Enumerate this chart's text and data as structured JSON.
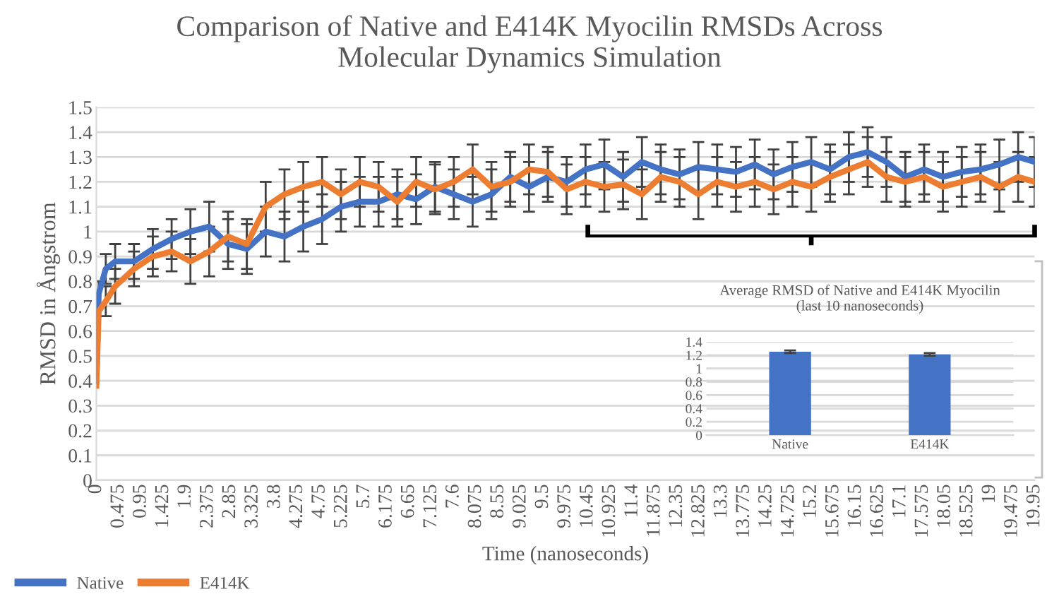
{
  "chart_data": [
    {
      "type": "line",
      "title": "Comparison of Native and E414K Myocilin RMSDs Across\nMolecular Dynamics Simulation",
      "xlabel": "Time (nanoseconds)",
      "ylabel": "RMSD in Ångstrom",
      "x": [
        0,
        0.05,
        0.2,
        0.4,
        0.8,
        1.2,
        1.6,
        2.0,
        2.4,
        2.8,
        3.2,
        3.6,
        4.0,
        4.4,
        4.8,
        5.2,
        5.6,
        6.0,
        6.4,
        6.8,
        7.2,
        7.6,
        8.0,
        8.4,
        8.8,
        9.2,
        9.6,
        10.0,
        10.4,
        10.8,
        11.2,
        11.6,
        12.0,
        12.4,
        12.8,
        13.2,
        13.6,
        14.0,
        14.4,
        14.8,
        15.2,
        15.6,
        16.0,
        16.4,
        16.8,
        17.2,
        17.6,
        18.0,
        18.4,
        18.8,
        19.2,
        19.6,
        19.95
      ],
      "series": [
        {
          "name": "Native",
          "color": "#4472c4",
          "values": [
            0.4,
            0.75,
            0.85,
            0.88,
            0.88,
            0.93,
            0.97,
            1.0,
            1.02,
            0.95,
            0.93,
            1.0,
            0.98,
            1.02,
            1.05,
            1.1,
            1.12,
            1.12,
            1.15,
            1.13,
            1.18,
            1.15,
            1.12,
            1.15,
            1.22,
            1.18,
            1.22,
            1.2,
            1.25,
            1.27,
            1.22,
            1.28,
            1.25,
            1.23,
            1.26,
            1.25,
            1.24,
            1.27,
            1.23,
            1.26,
            1.28,
            1.25,
            1.3,
            1.32,
            1.28,
            1.22,
            1.25,
            1.22,
            1.24,
            1.25,
            1.27,
            1.3,
            1.28
          ],
          "errors": [
            null,
            0.05,
            0.06,
            0.07,
            0.07,
            0.08,
            0.08,
            0.09,
            0.1,
            0.1,
            0.1,
            0.1,
            0.1,
            0.1,
            0.1,
            0.1,
            0.1,
            0.1,
            0.1,
            0.1,
            0.1,
            0.1,
            0.1,
            0.1,
            0.1,
            0.1,
            0.1,
            0.1,
            0.1,
            0.1,
            0.1,
            0.1,
            0.1,
            0.1,
            0.1,
            0.1,
            0.1,
            0.1,
            0.1,
            0.1,
            0.1,
            0.1,
            0.1,
            0.1,
            0.1,
            0.1,
            0.1,
            0.1,
            0.1,
            0.1,
            0.1,
            0.1,
            0.1
          ]
        },
        {
          "name": "E414K",
          "color": "#ed7d31",
          "values": [
            0.38,
            0.68,
            0.72,
            0.78,
            0.85,
            0.9,
            0.92,
            0.88,
            0.92,
            0.98,
            0.95,
            1.1,
            1.15,
            1.18,
            1.2,
            1.15,
            1.2,
            1.18,
            1.12,
            1.2,
            1.17,
            1.2,
            1.25,
            1.18,
            1.2,
            1.25,
            1.24,
            1.17,
            1.2,
            1.18,
            1.19,
            1.15,
            1.22,
            1.2,
            1.15,
            1.2,
            1.18,
            1.2,
            1.17,
            1.2,
            1.18,
            1.22,
            1.25,
            1.28,
            1.22,
            1.2,
            1.22,
            1.18,
            1.2,
            1.22,
            1.18,
            1.22,
            1.2
          ],
          "errors": [
            null,
            null,
            0.06,
            0.07,
            0.07,
            0.08,
            0.08,
            0.09,
            0.1,
            0.1,
            0.1,
            0.1,
            0.1,
            0.1,
            0.1,
            0.1,
            0.1,
            0.1,
            0.1,
            0.1,
            0.1,
            0.1,
            0.1,
            0.1,
            0.1,
            0.1,
            0.1,
            0.1,
            0.1,
            0.1,
            0.1,
            0.1,
            0.1,
            0.1,
            0.1,
            0.1,
            0.1,
            0.1,
            0.1,
            0.1,
            0.1,
            0.1,
            0.1,
            0.1,
            0.1,
            0.1,
            0.1,
            0.1,
            0.1,
            0.1,
            0.1,
            0.1,
            0.1
          ]
        }
      ],
      "xlim": [
        0,
        19.95
      ],
      "xticks": [
        0,
        0.475,
        0.95,
        1.425,
        1.9,
        2.375,
        2.85,
        3.325,
        3.8,
        4.275,
        4.75,
        5.225,
        5.7,
        6.175,
        6.65,
        7.125,
        7.6,
        8.075,
        8.55,
        9.025,
        9.5,
        9.975,
        10.45,
        10.925,
        11.4,
        11.875,
        12.35,
        12.825,
        13.3,
        13.775,
        14.25,
        14.725,
        15.2,
        15.675,
        16.15,
        16.625,
        17.1,
        17.575,
        18.05,
        18.525,
        19,
        19.475,
        19.95
      ],
      "ylim": [
        0,
        1.5
      ],
      "yticks": [
        0,
        0.1,
        0.2,
        0.3,
        0.4,
        0.5,
        0.6,
        0.7,
        0.8,
        0.9,
        1,
        1.1,
        1.2,
        1.3,
        1.4,
        1.5
      ],
      "grid": "y",
      "legend": "bottom left"
    },
    {
      "type": "bar",
      "title": "Average RMSD of Native and E414K Myocilin\n(last 10 nanoseconds)",
      "categories": [
        "Native",
        "E414K"
      ],
      "series": [
        {
          "color": "#4472c4",
          "values": [
            1.25,
            1.21
          ],
          "errors": [
            0.02,
            0.02
          ]
        }
      ],
      "ylim": [
        0,
        1.4
      ],
      "yticks": [
        0,
        0.2,
        0.4,
        0.6,
        0.8,
        1,
        1.2,
        1.4
      ],
      "grid": "y"
    }
  ]
}
